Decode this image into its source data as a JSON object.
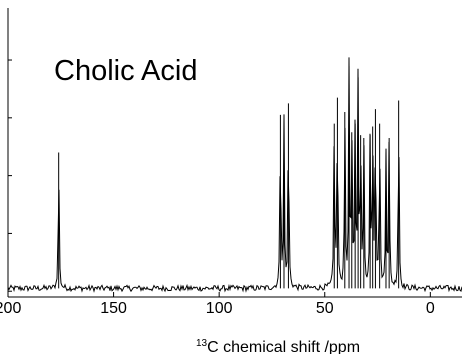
{
  "chart_data": {
    "type": "line",
    "title": "Cholic Acid",
    "xlabel": {
      "sup": "13",
      "main": "C chemical shift /ppm"
    },
    "ylabel": "",
    "xlim": [
      200,
      -15
    ],
    "x_reversed": true,
    "ylim": [
      0,
      1.0
    ],
    "x_ticks": [
      {
        "value": 200,
        "label": "200"
      },
      {
        "value": 150,
        "label": "150"
      },
      {
        "value": 100,
        "label": "100"
      },
      {
        "value": 50,
        "label": "50"
      },
      {
        "value": 0,
        "label": "0"
      }
    ],
    "y_tick_count": 5,
    "grid": false,
    "legend": "none",
    "line_color": "#000000",
    "baseline": 0.03,
    "noise": 0.01,
    "peaks": [
      {
        "x": 176.0,
        "height": 0.5
      },
      {
        "x": 71.0,
        "height": 0.63
      },
      {
        "x": 69.3,
        "height": 0.61
      },
      {
        "x": 67.2,
        "height": 0.67
      },
      {
        "x": 45.5,
        "height": 0.6
      },
      {
        "x": 44.0,
        "height": 0.69
      },
      {
        "x": 40.5,
        "height": 0.64
      },
      {
        "x": 38.5,
        "height": 0.8
      },
      {
        "x": 37.2,
        "height": 0.57
      },
      {
        "x": 35.6,
        "height": 0.6
      },
      {
        "x": 34.2,
        "height": 0.76
      },
      {
        "x": 33.0,
        "height": 0.56
      },
      {
        "x": 31.5,
        "height": 0.55
      },
      {
        "x": 28.5,
        "height": 0.56
      },
      {
        "x": 27.3,
        "height": 0.59
      },
      {
        "x": 26.0,
        "height": 0.65
      },
      {
        "x": 24.0,
        "height": 0.6
      },
      {
        "x": 21.0,
        "height": 0.5
      },
      {
        "x": 19.5,
        "height": 0.55
      },
      {
        "x": 15.0,
        "height": 0.68
      }
    ]
  }
}
